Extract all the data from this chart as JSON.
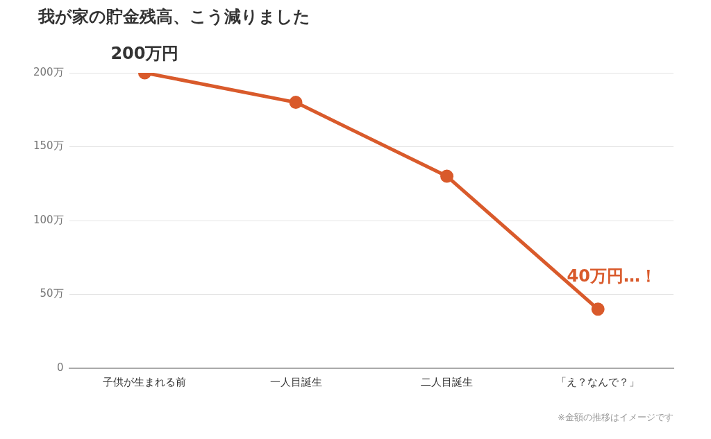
{
  "chart_data": {
    "type": "line",
    "title": "我が家の貯金残高、こう減りました",
    "categories": [
      "子供が生まれる前",
      "一人目誕生",
      "二人目誕生",
      "「え？なんで？」"
    ],
    "series": [
      {
        "color": "#d95a2b",
        "values": [
          200,
          180,
          130,
          40
        ]
      }
    ],
    "ylim": [
      0,
      200
    ],
    "yticks": [
      {
        "value": 0,
        "label": "0"
      },
      {
        "value": 50,
        "label": "50万"
      },
      {
        "value": 100,
        "label": "100万"
      },
      {
        "value": 150,
        "label": "150万"
      },
      {
        "value": 200,
        "label": "200万"
      }
    ],
    "grid": "y",
    "legend": false,
    "marker": "circle",
    "line_style": "solid",
    "annotations": [
      {
        "text": "200万円",
        "x": "子供が生まれる前",
        "y": 200
      },
      {
        "text": "40万円…！",
        "x": "「え？なんで？」",
        "y": 40
      },
      "※金額の推移はイメージです"
    ]
  }
}
